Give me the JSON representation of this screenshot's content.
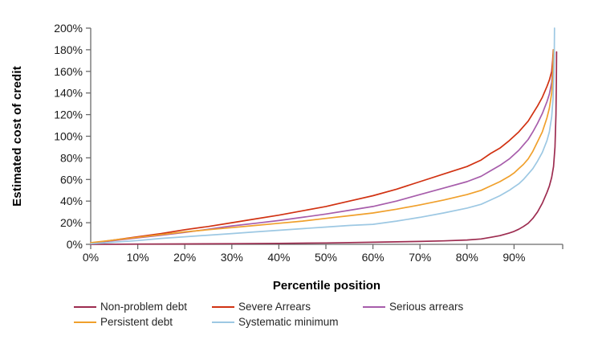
{
  "chart_data": {
    "type": "line",
    "title": "",
    "xlabel": "Percentile position",
    "ylabel": "Estimated cost of credit",
    "grid": false,
    "legend_position": "bottom",
    "xlim": [
      0,
      100.34
    ],
    "ylim": [
      0,
      200
    ],
    "x_tick_values": [
      0,
      10,
      20,
      30,
      40,
      50,
      60,
      70,
      80,
      90
    ],
    "x_tick_labels": [
      "0%",
      "10%",
      "20%",
      "30%",
      "40%",
      "50%",
      "60%",
      "70%",
      "80%",
      "90%"
    ],
    "x_axis_end_tick": true,
    "y_tick_values": [
      0,
      20,
      40,
      60,
      80,
      100,
      120,
      140,
      160,
      180,
      200
    ],
    "y_tick_labels": [
      "0%",
      "20%",
      "40%",
      "60%",
      "80%",
      "100%",
      "120%",
      "140%",
      "160%",
      "180%",
      "200%"
    ],
    "axis_color": "#6b6b6b",
    "series": [
      {
        "name": "Non-problem debt",
        "color": "#9D2C50",
        "points": [
          [
            0,
            0
          ],
          [
            10,
            0.2
          ],
          [
            20,
            0.4
          ],
          [
            30,
            0.6
          ],
          [
            40,
            0.9
          ],
          [
            50,
            1.3
          ],
          [
            60,
            1.9
          ],
          [
            70,
            2.7
          ],
          [
            75,
            3.2
          ],
          [
            80,
            4
          ],
          [
            83,
            5
          ],
          [
            85,
            6.5
          ],
          [
            87,
            8
          ],
          [
            89,
            10.5
          ],
          [
            90,
            12
          ],
          [
            91,
            14
          ],
          [
            92,
            16.5
          ],
          [
            93,
            19.5
          ],
          [
            94,
            24
          ],
          [
            95,
            30
          ],
          [
            96,
            38
          ],
          [
            97,
            48
          ],
          [
            97.5,
            54
          ],
          [
            98,
            62
          ],
          [
            98.4,
            72
          ],
          [
            98.7,
            90
          ],
          [
            98.9,
            120
          ],
          [
            99,
            150
          ],
          [
            99.05,
            178
          ]
        ]
      },
      {
        "name": "Severe Arrears",
        "color": "#D13212",
        "points": [
          [
            0,
            1
          ],
          [
            5,
            4
          ],
          [
            10,
            7
          ],
          [
            15,
            10
          ],
          [
            20,
            13.5
          ],
          [
            25,
            16.5
          ],
          [
            30,
            20
          ],
          [
            35,
            23.5
          ],
          [
            40,
            27
          ],
          [
            45,
            31
          ],
          [
            50,
            35
          ],
          [
            55,
            40
          ],
          [
            60,
            45
          ],
          [
            65,
            51
          ],
          [
            70,
            58
          ],
          [
            75,
            65
          ],
          [
            80,
            72
          ],
          [
            83,
            78
          ],
          [
            85,
            84
          ],
          [
            87,
            89
          ],
          [
            89,
            96
          ],
          [
            90,
            100
          ],
          [
            91,
            104
          ],
          [
            92,
            109
          ],
          [
            93,
            114
          ],
          [
            94,
            121
          ],
          [
            95,
            128
          ],
          [
            96,
            136
          ],
          [
            97,
            146
          ],
          [
            97.5,
            152
          ],
          [
            98,
            160
          ],
          [
            98.2,
            170
          ],
          [
            98.35,
            180
          ]
        ]
      },
      {
        "name": "Serious arrears",
        "color": "#A75DAB",
        "points": [
          [
            0,
            1
          ],
          [
            5,
            3.5
          ],
          [
            10,
            6
          ],
          [
            15,
            8.5
          ],
          [
            20,
            11
          ],
          [
            25,
            14
          ],
          [
            30,
            17
          ],
          [
            35,
            19.5
          ],
          [
            40,
            22
          ],
          [
            45,
            25
          ],
          [
            50,
            28
          ],
          [
            55,
            31.5
          ],
          [
            60,
            35
          ],
          [
            65,
            40
          ],
          [
            70,
            46
          ],
          [
            75,
            52
          ],
          [
            80,
            58
          ],
          [
            83,
            63
          ],
          [
            85,
            68
          ],
          [
            87,
            73
          ],
          [
            89,
            79
          ],
          [
            90,
            83
          ],
          [
            91,
            87
          ],
          [
            92,
            92
          ],
          [
            93,
            97
          ],
          [
            94,
            104
          ],
          [
            95,
            112
          ],
          [
            96,
            121
          ],
          [
            97,
            132
          ],
          [
            97.5,
            139
          ],
          [
            98,
            150
          ],
          [
            98.2,
            162
          ],
          [
            98.4,
            180
          ]
        ]
      },
      {
        "name": "Persistent debt",
        "color": "#F0A02C",
        "points": [
          [
            0,
            1.5
          ],
          [
            5,
            4
          ],
          [
            10,
            6.5
          ],
          [
            15,
            9
          ],
          [
            20,
            11.5
          ],
          [
            25,
            13.5
          ],
          [
            30,
            15.5
          ],
          [
            35,
            17.5
          ],
          [
            40,
            19.5
          ],
          [
            45,
            21.5
          ],
          [
            50,
            24
          ],
          [
            55,
            26.5
          ],
          [
            60,
            29
          ],
          [
            65,
            32.5
          ],
          [
            70,
            36.5
          ],
          [
            75,
            41
          ],
          [
            80,
            46
          ],
          [
            83,
            50
          ],
          [
            85,
            54
          ],
          [
            87,
            58
          ],
          [
            89,
            63
          ],
          [
            90,
            66
          ],
          [
            91,
            70
          ],
          [
            92,
            74
          ],
          [
            93,
            79
          ],
          [
            94,
            86
          ],
          [
            95,
            95
          ],
          [
            96,
            104
          ],
          [
            97,
            117
          ],
          [
            97.5,
            126
          ],
          [
            98,
            140
          ],
          [
            98.2,
            155
          ],
          [
            98.4,
            180
          ]
        ]
      },
      {
        "name": "Systematic minimum",
        "color": "#9DC8E3",
        "points": [
          [
            0,
            0.5
          ],
          [
            5,
            2
          ],
          [
            10,
            3.5
          ],
          [
            15,
            5.5
          ],
          [
            20,
            7
          ],
          [
            25,
            8.5
          ],
          [
            30,
            10
          ],
          [
            35,
            11.5
          ],
          [
            40,
            13
          ],
          [
            45,
            14.5
          ],
          [
            50,
            16
          ],
          [
            55,
            17.5
          ],
          [
            60,
            18.5
          ],
          [
            65,
            21.5
          ],
          [
            70,
            25
          ],
          [
            75,
            29
          ],
          [
            80,
            33.5
          ],
          [
            83,
            37
          ],
          [
            85,
            41
          ],
          [
            87,
            45
          ],
          [
            89,
            50
          ],
          [
            90,
            53
          ],
          [
            91,
            56
          ],
          [
            92,
            60
          ],
          [
            93,
            65
          ],
          [
            94,
            70
          ],
          [
            95,
            77
          ],
          [
            96,
            85
          ],
          [
            97,
            96
          ],
          [
            97.5,
            104
          ],
          [
            98,
            118
          ],
          [
            98.3,
            135
          ],
          [
            98.45,
            155
          ],
          [
            98.55,
            175
          ],
          [
            98.6,
            200
          ]
        ]
      }
    ]
  }
}
